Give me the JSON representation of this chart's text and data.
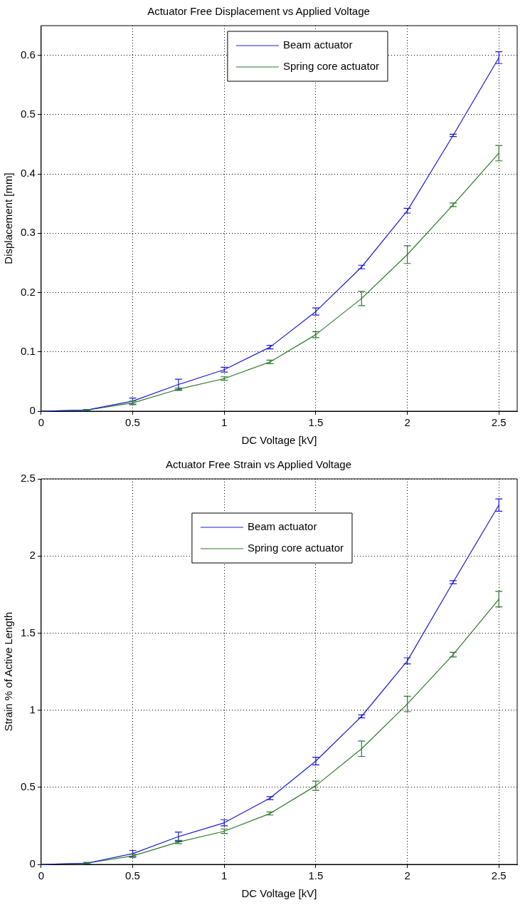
{
  "chart_data": [
    {
      "type": "line",
      "title": "Actuator Free Displacement vs Applied Voltage",
      "xlabel": "DC Voltage [kV]",
      "ylabel": "Displacement [mm]",
      "x": [
        0,
        0.25,
        0.5,
        0.75,
        1,
        1.25,
        1.5,
        1.75,
        2,
        2.25,
        2.5
      ],
      "xlim": [
        0,
        2.6
      ],
      "xticks": [
        0,
        0.5,
        1,
        1.5,
        2,
        2.5
      ],
      "ylim": [
        0,
        0.65
      ],
      "yticks": [
        0,
        0.1,
        0.2,
        0.3,
        0.4,
        0.5,
        0.6
      ],
      "grid": true,
      "legend": "top",
      "series": [
        {
          "name": "Beam actuator",
          "color": "#1a1ad0",
          "values": [
            0,
            0.002,
            0.017,
            0.045,
            0.07,
            0.108,
            0.168,
            0.243,
            0.338,
            0.465,
            0.596
          ],
          "errors": [
            null,
            0.001,
            0.005,
            0.009,
            0.004,
            0.003,
            0.006,
            0.003,
            0.004,
            0.002,
            0.01
          ]
        },
        {
          "name": "Spring core actuator",
          "color": "#2a7a2a",
          "values": [
            0,
            0.002,
            0.014,
            0.037,
            0.055,
            0.083,
            0.129,
            0.19,
            0.264,
            0.348,
            0.435
          ],
          "errors": [
            null,
            0.001,
            0.003,
            0.002,
            0.003,
            0.003,
            0.005,
            0.012,
            0.015,
            0.003,
            0.013
          ]
        }
      ]
    },
    {
      "type": "line",
      "title": "Actuator Free Strain vs Applied Voltage",
      "xlabel": "DC Voltage [kV]",
      "ylabel": "Strain % of Active Length",
      "x": [
        0,
        0.25,
        0.5,
        0.75,
        1,
        1.25,
        1.5,
        1.75,
        2,
        2.25,
        2.5
      ],
      "xlim": [
        0,
        2.6
      ],
      "xticks": [
        0,
        0.5,
        1,
        1.5,
        2,
        2.5
      ],
      "ylim": [
        0,
        2.5
      ],
      "yticks": [
        0,
        0.5,
        1,
        1.5,
        2,
        2.5
      ],
      "grid": true,
      "legend": "top",
      "series": [
        {
          "name": "Beam actuator",
          "color": "#1a1ad0",
          "values": [
            0,
            0.008,
            0.07,
            0.18,
            0.27,
            0.43,
            0.67,
            0.96,
            1.32,
            1.83,
            2.33
          ],
          "errors": [
            null,
            0.004,
            0.02,
            0.03,
            0.02,
            0.01,
            0.025,
            0.01,
            0.02,
            0.01,
            0.04
          ]
        },
        {
          "name": "Spring core actuator",
          "color": "#2a7a2a",
          "values": [
            0,
            0.008,
            0.055,
            0.145,
            0.215,
            0.33,
            0.51,
            0.75,
            1.04,
            1.36,
            1.72
          ],
          "errors": [
            null,
            0.004,
            0.01,
            0.01,
            0.015,
            0.01,
            0.03,
            0.05,
            0.05,
            0.015,
            0.05
          ]
        }
      ]
    }
  ]
}
